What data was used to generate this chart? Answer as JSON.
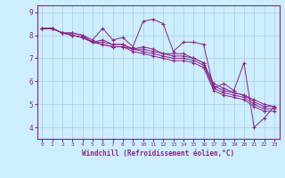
{
  "title": "",
  "xlabel": "Windchill (Refroidissement éolien,°C)",
  "bg_color": "#cceeff",
  "line_color": "#882288",
  "grid_color": "#aaccdd",
  "xlim": [
    -0.5,
    23.5
  ],
  "ylim": [
    3.5,
    9.3
  ],
  "yticks": [
    4,
    5,
    6,
    7,
    8,
    9
  ],
  "xticks": [
    0,
    1,
    2,
    3,
    4,
    5,
    6,
    7,
    8,
    9,
    10,
    11,
    12,
    13,
    14,
    15,
    16,
    17,
    18,
    19,
    20,
    21,
    22,
    23
  ],
  "series": [
    [
      8.3,
      8.3,
      8.1,
      8.1,
      8.0,
      7.8,
      8.3,
      7.8,
      7.9,
      7.5,
      8.6,
      8.7,
      8.5,
      7.3,
      7.7,
      7.7,
      7.6,
      5.7,
      5.9,
      5.6,
      6.8,
      4.0,
      4.4,
      4.9
    ],
    [
      8.3,
      8.3,
      8.1,
      8.1,
      8.0,
      7.7,
      7.8,
      7.6,
      7.6,
      7.4,
      7.5,
      7.4,
      7.2,
      7.2,
      7.2,
      7.0,
      6.8,
      5.9,
      5.7,
      5.5,
      5.4,
      5.2,
      5.0,
      4.9
    ],
    [
      8.3,
      8.3,
      8.1,
      8.0,
      7.9,
      7.7,
      7.7,
      7.6,
      7.6,
      7.4,
      7.4,
      7.3,
      7.2,
      7.1,
      7.1,
      7.0,
      6.8,
      5.8,
      5.6,
      5.5,
      5.4,
      5.1,
      4.9,
      4.9
    ],
    [
      8.3,
      8.3,
      8.1,
      8.0,
      7.9,
      7.7,
      7.6,
      7.5,
      7.5,
      7.4,
      7.3,
      7.2,
      7.1,
      7.0,
      7.0,
      6.9,
      6.7,
      5.7,
      5.5,
      5.4,
      5.3,
      5.0,
      4.8,
      4.8
    ],
    [
      8.3,
      8.3,
      8.1,
      8.0,
      7.9,
      7.7,
      7.6,
      7.5,
      7.5,
      7.3,
      7.2,
      7.1,
      7.0,
      6.9,
      6.9,
      6.8,
      6.6,
      5.6,
      5.4,
      5.3,
      5.2,
      4.9,
      4.7,
      4.7
    ]
  ]
}
